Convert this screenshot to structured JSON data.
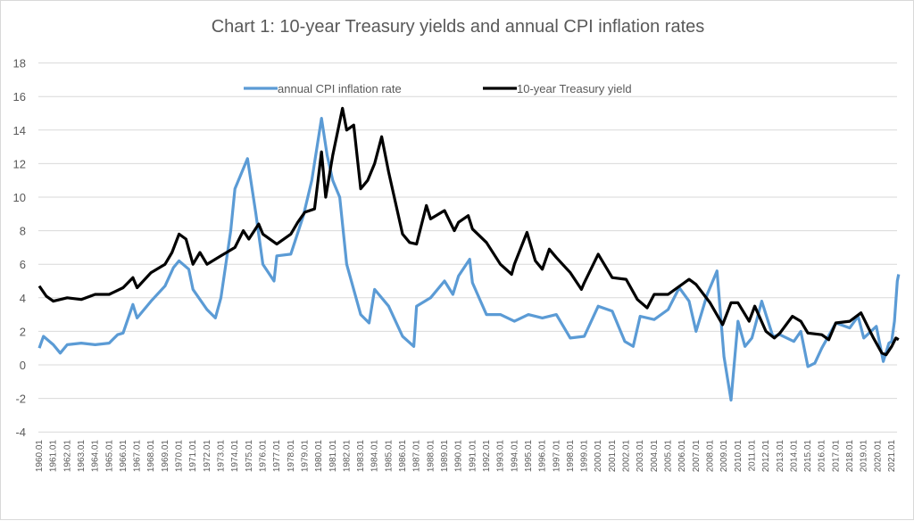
{
  "chart_data": {
    "type": "line",
    "title": "Chart 1: 10-year Treasury yields and annual CPI inflation rates",
    "xlabel": "",
    "ylabel": "",
    "ylim": [
      -4,
      18
    ],
    "yticks": [
      -4,
      -2,
      0,
      2,
      4,
      6,
      8,
      10,
      12,
      14,
      16,
      18
    ],
    "xlim": [
      1960,
      2021.5
    ],
    "xtick_labels": [
      "1960.01",
      "1961.01",
      "1962.01",
      "1963.01",
      "1964.01",
      "1965.01",
      "1966.01",
      "1967.01",
      "1968.01",
      "1969.01",
      "1970.01",
      "1971.01",
      "1972.01",
      "1973.01",
      "1974.01",
      "1975.01",
      "1976.01",
      "1977.01",
      "1978.01",
      "1979.01",
      "1980.01",
      "1981.01",
      "1982.01",
      "1983.01",
      "1984.01",
      "1985.01",
      "1986.01",
      "1987.01",
      "1988.01",
      "1989.01",
      "1990.01",
      "1991.01",
      "1992.01",
      "1993.01",
      "1994.01",
      "1995.01",
      "1996.01",
      "1997.01",
      "1998.01",
      "1999.01",
      "2000.01",
      "2001.01",
      "2002.01",
      "2003.01",
      "2004.01",
      "2005.01",
      "2006.01",
      "2007.01",
      "2008.01",
      "2009.01",
      "2010.01",
      "2011.01",
      "2012.01",
      "2013.01",
      "2014.01",
      "2015.01",
      "2016.01",
      "2017.01",
      "2018.01",
      "2019.01",
      "2020.01",
      "2021.01"
    ],
    "grid": true,
    "legend_placement": "top-center",
    "series": [
      {
        "name": "annual CPI inflation rate",
        "color": "#5b9bd5",
        "points": [
          [
            1960,
            1.0
          ],
          [
            1960.3,
            1.7
          ],
          [
            1961,
            1.2
          ],
          [
            1961.5,
            0.7
          ],
          [
            1962,
            1.2
          ],
          [
            1963,
            1.3
          ],
          [
            1964,
            1.2
          ],
          [
            1965,
            1.3
          ],
          [
            1965.6,
            1.8
          ],
          [
            1966,
            1.9
          ],
          [
            1966.7,
            3.6
          ],
          [
            1967,
            2.8
          ],
          [
            1968,
            3.8
          ],
          [
            1969,
            4.7
          ],
          [
            1969.6,
            5.8
          ],
          [
            1970,
            6.2
          ],
          [
            1970.7,
            5.7
          ],
          [
            1971,
            4.5
          ],
          [
            1972,
            3.3
          ],
          [
            1972.6,
            2.8
          ],
          [
            1973,
            4.0
          ],
          [
            1973.7,
            8.0
          ],
          [
            1974,
            10.5
          ],
          [
            1974.9,
            12.3
          ],
          [
            1975.5,
            9.0
          ],
          [
            1976,
            6.0
          ],
          [
            1976.8,
            5.0
          ],
          [
            1977,
            6.5
          ],
          [
            1978,
            6.6
          ],
          [
            1978.9,
            8.9
          ],
          [
            1979.5,
            11.0
          ],
          [
            1980.2,
            14.7
          ],
          [
            1980.6,
            12.5
          ],
          [
            1981,
            11.0
          ],
          [
            1981.5,
            10.0
          ],
          [
            1982,
            6.0
          ],
          [
            1983,
            3.0
          ],
          [
            1983.6,
            2.5
          ],
          [
            1984,
            4.5
          ],
          [
            1985,
            3.5
          ],
          [
            1986,
            1.7
          ],
          [
            1986.8,
            1.1
          ],
          [
            1987,
            3.5
          ],
          [
            1988,
            4.0
          ],
          [
            1989,
            5.0
          ],
          [
            1989.6,
            4.2
          ],
          [
            1990,
            5.3
          ],
          [
            1990.8,
            6.3
          ],
          [
            1991,
            4.9
          ],
          [
            1992,
            3.0
          ],
          [
            1993,
            3.0
          ],
          [
            1994,
            2.6
          ],
          [
            1995,
            3.0
          ],
          [
            1996,
            2.8
          ],
          [
            1997,
            3.0
          ],
          [
            1998,
            1.6
          ],
          [
            1999,
            1.7
          ],
          [
            2000,
            3.5
          ],
          [
            2001,
            3.2
          ],
          [
            2001.9,
            1.4
          ],
          [
            2002.5,
            1.1
          ],
          [
            2003,
            2.9
          ],
          [
            2004,
            2.7
          ],
          [
            2005,
            3.3
          ],
          [
            2005.8,
            4.6
          ],
          [
            2006.5,
            3.8
          ],
          [
            2007,
            2.0
          ],
          [
            2007.8,
            4.2
          ],
          [
            2008.5,
            5.6
          ],
          [
            2009,
            0.5
          ],
          [
            2009.5,
            -2.1
          ],
          [
            2010,
            2.6
          ],
          [
            2010.5,
            1.1
          ],
          [
            2011,
            1.6
          ],
          [
            2011.7,
            3.8
          ],
          [
            2012.5,
            1.7
          ],
          [
            2013,
            1.8
          ],
          [
            2014,
            1.4
          ],
          [
            2014.5,
            2.0
          ],
          [
            2015,
            -0.1
          ],
          [
            2015.5,
            0.1
          ],
          [
            2016,
            1.0
          ],
          [
            2017,
            2.5
          ],
          [
            2018,
            2.2
          ],
          [
            2018.6,
            2.9
          ],
          [
            2019,
            1.6
          ],
          [
            2019.9,
            2.3
          ],
          [
            2020.4,
            0.2
          ],
          [
            2020.8,
            1.3
          ],
          [
            2021,
            1.4
          ],
          [
            2021.2,
            2.6
          ],
          [
            2021.4,
            5.0
          ],
          [
            2021.5,
            5.4
          ]
        ]
      },
      {
        "name": "10-year Treasury yield",
        "color": "#000000",
        "points": [
          [
            1960,
            4.7
          ],
          [
            1960.5,
            4.1
          ],
          [
            1961,
            3.8
          ],
          [
            1962,
            4.0
          ],
          [
            1963,
            3.9
          ],
          [
            1964,
            4.2
          ],
          [
            1965,
            4.2
          ],
          [
            1966,
            4.6
          ],
          [
            1966.7,
            5.2
          ],
          [
            1967,
            4.6
          ],
          [
            1968,
            5.5
          ],
          [
            1969,
            6.0
          ],
          [
            1969.5,
            6.7
          ],
          [
            1970,
            7.8
          ],
          [
            1970.5,
            7.5
          ],
          [
            1971,
            6.0
          ],
          [
            1971.5,
            6.7
          ],
          [
            1972,
            6.0
          ],
          [
            1973,
            6.5
          ],
          [
            1974,
            7.0
          ],
          [
            1974.6,
            8.0
          ],
          [
            1975,
            7.5
          ],
          [
            1975.7,
            8.4
          ],
          [
            1976,
            7.8
          ],
          [
            1977,
            7.2
          ],
          [
            1978,
            7.8
          ],
          [
            1978.5,
            8.5
          ],
          [
            1979,
            9.1
          ],
          [
            1979.7,
            9.3
          ],
          [
            1980.2,
            12.7
          ],
          [
            1980.5,
            10.0
          ],
          [
            1981,
            12.5
          ],
          [
            1981.7,
            15.3
          ],
          [
            1982,
            14.0
          ],
          [
            1982.5,
            14.3
          ],
          [
            1983,
            10.5
          ],
          [
            1983.5,
            11.0
          ],
          [
            1984,
            12.0
          ],
          [
            1984.5,
            13.6
          ],
          [
            1985,
            11.5
          ],
          [
            1986,
            7.8
          ],
          [
            1986.5,
            7.3
          ],
          [
            1987,
            7.2
          ],
          [
            1987.7,
            9.5
          ],
          [
            1988,
            8.7
          ],
          [
            1989,
            9.2
          ],
          [
            1989.7,
            8.0
          ],
          [
            1990,
            8.5
          ],
          [
            1990.7,
            8.9
          ],
          [
            1991,
            8.1
          ],
          [
            1992,
            7.3
          ],
          [
            1993,
            6.0
          ],
          [
            1993.8,
            5.4
          ],
          [
            1994,
            6.0
          ],
          [
            1994.9,
            7.9
          ],
          [
            1995.5,
            6.2
          ],
          [
            1996,
            5.7
          ],
          [
            1996.5,
            6.9
          ],
          [
            1997,
            6.4
          ],
          [
            1998,
            5.5
          ],
          [
            1998.8,
            4.5
          ],
          [
            1999,
            4.9
          ],
          [
            2000,
            6.6
          ],
          [
            2001,
            5.2
          ],
          [
            2002,
            5.1
          ],
          [
            2002.8,
            3.9
          ],
          [
            2003.5,
            3.4
          ],
          [
            2004,
            4.2
          ],
          [
            2005,
            4.2
          ],
          [
            2006.5,
            5.1
          ],
          [
            2007,
            4.8
          ],
          [
            2008,
            3.7
          ],
          [
            2008.9,
            2.4
          ],
          [
            2009.5,
            3.7
          ],
          [
            2010,
            3.7
          ],
          [
            2010.8,
            2.6
          ],
          [
            2011.2,
            3.5
          ],
          [
            2012,
            2.0
          ],
          [
            2012.6,
            1.6
          ],
          [
            2013,
            1.9
          ],
          [
            2013.9,
            2.9
          ],
          [
            2014.5,
            2.6
          ],
          [
            2015,
            1.9
          ],
          [
            2016,
            1.8
          ],
          [
            2016.5,
            1.5
          ],
          [
            2017,
            2.5
          ],
          [
            2018,
            2.6
          ],
          [
            2018.8,
            3.1
          ],
          [
            2019.7,
            1.6
          ],
          [
            2020.3,
            0.7
          ],
          [
            2020.6,
            0.6
          ],
          [
            2021,
            1.1
          ],
          [
            2021.3,
            1.6
          ],
          [
            2021.5,
            1.5
          ]
        ]
      }
    ]
  }
}
